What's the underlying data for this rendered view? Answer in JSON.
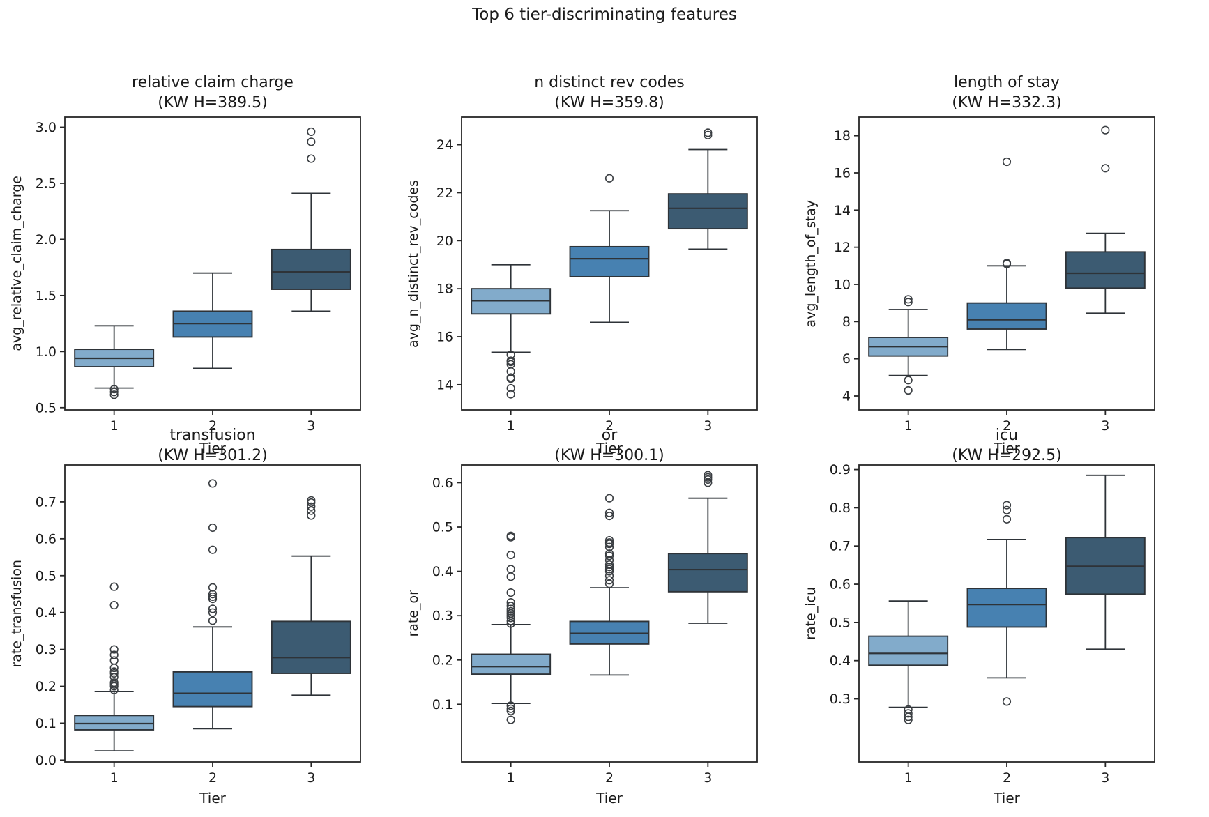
{
  "figure": {
    "suptitle": "Top 6 tier-discriminating features",
    "background": "#ffffff"
  },
  "colors": {
    "tier_fills": [
      "#82abcb",
      "#4781b1",
      "#3c5b72"
    ],
    "edge": "#2e3338",
    "spine": "#262626",
    "outlier_stroke": "#3a3e42",
    "text": "#1a1a1a"
  },
  "chart_data": {
    "type": "bar",
    "subtype": "boxplot-grid-2x3",
    "x_categories": [
      "1",
      "2",
      "3"
    ],
    "plots": [
      {
        "title_line1": "relative claim charge",
        "title_line2": "(KW H=389.5)",
        "ylabel": "avg_relative_claim_charge",
        "xlabel": "Tier",
        "ylim": [
          0.48,
          3.09
        ],
        "yticks": [
          "0.5",
          "1.0",
          "1.5",
          "2.0",
          "2.5",
          "3.0"
        ],
        "groups": [
          {
            "tier": "1",
            "whisker_low": 0.675,
            "q1": 0.865,
            "median": 0.94,
            "q3": 1.02,
            "whisker_high": 1.23,
            "outliers": [
              0.665,
              0.64,
              0.615
            ]
          },
          {
            "tier": "2",
            "whisker_low": 0.85,
            "q1": 1.13,
            "median": 1.25,
            "q3": 1.36,
            "whisker_high": 1.7,
            "outliers": []
          },
          {
            "tier": "3",
            "whisker_low": 1.36,
            "q1": 1.555,
            "median": 1.71,
            "q3": 1.91,
            "whisker_high": 2.41,
            "outliers": [
              2.96,
              2.87,
              2.72
            ]
          }
        ]
      },
      {
        "title_line1": "n distinct rev codes",
        "title_line2": "(KW H=359.8)",
        "ylabel": "avg_n_distinct_rev_codes",
        "xlabel": "Tier",
        "ylim": [
          12.95,
          25.15
        ],
        "yticks": [
          "14",
          "16",
          "18",
          "20",
          "22",
          "24"
        ],
        "groups": [
          {
            "tier": "1",
            "whisker_low": 15.35,
            "q1": 16.95,
            "median": 17.5,
            "q3": 18.0,
            "whisker_high": 19.0,
            "outliers": [
              15.25,
              15.0,
              14.95,
              14.85,
              14.55,
              14.3,
              14.25,
              13.85,
              13.6
            ]
          },
          {
            "tier": "2",
            "whisker_low": 16.6,
            "q1": 18.5,
            "median": 19.25,
            "q3": 19.75,
            "whisker_high": 21.25,
            "outliers": [
              22.6
            ]
          },
          {
            "tier": "3",
            "whisker_low": 19.65,
            "q1": 20.5,
            "median": 21.35,
            "q3": 21.95,
            "whisker_high": 23.8,
            "outliers": [
              24.5,
              24.4
            ]
          }
        ]
      },
      {
        "title_line1": "length of stay",
        "title_line2": "(KW H=332.3)",
        "ylabel": "avg_length_of_stay",
        "xlabel": "Tier",
        "ylim": [
          3.25,
          19.0
        ],
        "yticks": [
          "4",
          "6",
          "8",
          "10",
          "12",
          "14",
          "16",
          "18"
        ],
        "groups": [
          {
            "tier": "1",
            "whisker_low": 5.1,
            "q1": 6.15,
            "median": 6.65,
            "q3": 7.15,
            "whisker_high": 8.65,
            "outliers": [
              9.2,
              9.05,
              4.85,
              4.3
            ]
          },
          {
            "tier": "2",
            "whisker_low": 6.5,
            "q1": 7.6,
            "median": 8.1,
            "q3": 9.0,
            "whisker_high": 11.0,
            "outliers": [
              11.15,
              11.1,
              16.6
            ]
          },
          {
            "tier": "3",
            "whisker_low": 8.45,
            "q1": 9.8,
            "median": 10.6,
            "q3": 11.75,
            "whisker_high": 12.75,
            "outliers": [
              18.3,
              16.25
            ]
          }
        ]
      },
      {
        "title_line1": "transfusion",
        "title_line2": "(KW H=301.2)",
        "ylabel": "rate_transfusion",
        "xlabel": "Tier",
        "ylim": [
          -0.005,
          0.8
        ],
        "yticks": [
          "0.0",
          "0.1",
          "0.2",
          "0.3",
          "0.4",
          "0.5",
          "0.6",
          "0.7"
        ],
        "groups": [
          {
            "tier": "1",
            "whisker_low": 0.025,
            "q1": 0.082,
            "median": 0.099,
            "q3": 0.121,
            "whisker_high": 0.186,
            "outliers": [
              0.19,
              0.2,
              0.205,
              0.21,
              0.225,
              0.235,
              0.24,
              0.25,
              0.27,
              0.285,
              0.3,
              0.42,
              0.47
            ]
          },
          {
            "tier": "2",
            "whisker_low": 0.085,
            "q1": 0.145,
            "median": 0.181,
            "q3": 0.239,
            "whisker_high": 0.361,
            "outliers": [
              0.378,
              0.4,
              0.41,
              0.437,
              0.443,
              0.45,
              0.468,
              0.57,
              0.63,
              0.75
            ]
          },
          {
            "tier": "3",
            "whisker_low": 0.176,
            "q1": 0.235,
            "median": 0.278,
            "q3": 0.376,
            "whisker_high": 0.553,
            "outliers": [
              0.663,
              0.676,
              0.687,
              0.698,
              0.704
            ]
          }
        ]
      },
      {
        "title_line1": "or",
        "title_line2": "(KW H=300.1)",
        "ylabel": "rate_or",
        "xlabel": "Tier",
        "ylim": [
          -0.03,
          0.64
        ],
        "yticks": [
          "0.1",
          "0.2",
          "0.3",
          "0.4",
          "0.5",
          "0.6"
        ],
        "groups": [
          {
            "tier": "1",
            "whisker_low": 0.102,
            "q1": 0.168,
            "median": 0.185,
            "q3": 0.213,
            "whisker_high": 0.28,
            "outliers": [
              0.48,
              0.477,
              0.437,
              0.405,
              0.388,
              0.352,
              0.33,
              0.322,
              0.315,
              0.31,
              0.305,
              0.3,
              0.295,
              0.288,
              0.282,
              0.097,
              0.09,
              0.085,
              0.065
            ]
          },
          {
            "tier": "2",
            "whisker_low": 0.166,
            "q1": 0.236,
            "median": 0.26,
            "q3": 0.287,
            "whisker_high": 0.363,
            "outliers": [
              0.372,
              0.38,
              0.39,
              0.4,
              0.405,
              0.41,
              0.415,
              0.425,
              0.435,
              0.44,
              0.455,
              0.462,
              0.465,
              0.47,
              0.525,
              0.532,
              0.565
            ]
          },
          {
            "tier": "3",
            "whisker_low": 0.283,
            "q1": 0.354,
            "median": 0.404,
            "q3": 0.44,
            "whisker_high": 0.565,
            "outliers": [
              0.6,
              0.607,
              0.612,
              0.617
            ]
          }
        ]
      },
      {
        "title_line1": "icu",
        "title_line2": "(KW H=292.5)",
        "ylabel": "rate_icu",
        "xlabel": "Tier",
        "ylim": [
          0.135,
          0.912
        ],
        "yticks": [
          "0.3",
          "0.4",
          "0.5",
          "0.6",
          "0.7",
          "0.8",
          "0.9"
        ],
        "groups": [
          {
            "tier": "1",
            "whisker_low": 0.278,
            "q1": 0.388,
            "median": 0.419,
            "q3": 0.464,
            "whisker_high": 0.556,
            "outliers": [
              0.272,
              0.262,
              0.253,
              0.245
            ]
          },
          {
            "tier": "2",
            "whisker_low": 0.355,
            "q1": 0.488,
            "median": 0.547,
            "q3": 0.589,
            "whisker_high": 0.717,
            "outliers": [
              0.807,
              0.794,
              0.77,
              0.293
            ]
          },
          {
            "tier": "3",
            "whisker_low": 0.43,
            "q1": 0.574,
            "median": 0.647,
            "q3": 0.722,
            "whisker_high": 0.885,
            "outliers": []
          }
        ]
      }
    ]
  }
}
